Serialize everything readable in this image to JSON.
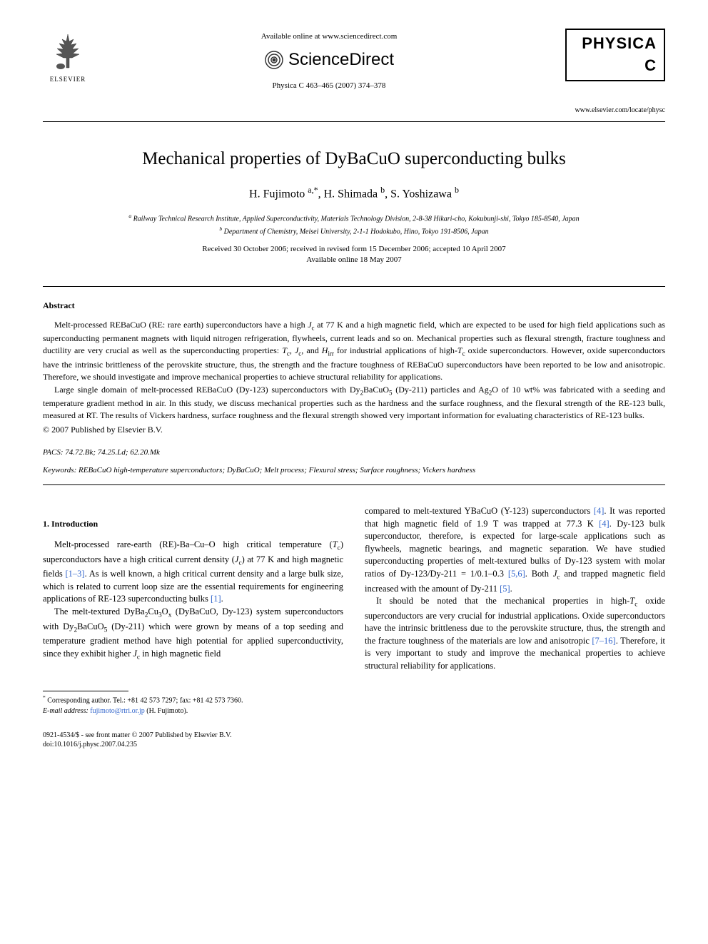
{
  "header": {
    "elsevier_label": "ELSEVIER",
    "available_online": "Available online at www.sciencedirect.com",
    "sciencedirect_label": "ScienceDirect",
    "journal_reference": "Physica C 463–465 (2007) 374–378",
    "journal_logo_text": "PHYSICA C",
    "journal_url": "www.elsevier.com/locate/physc"
  },
  "title": "Mechanical properties of DyBaCuO superconducting bulks",
  "authors_html": "H. Fujimoto <sup>a,*</sup>, H. Shimada <sup>b</sup>, S. Yoshizawa <sup>b</sup>",
  "affiliations": {
    "a": "Railway Technical Research Institute, Applied Superconductivity, Materials Technology Division, 2-8-38 Hikari-cho, Kokubunji-shi, Tokyo 185-8540, Japan",
    "b": "Department of Chemistry, Meisei University, 2-1-1 Hodokubo, Hino, Tokyo 191-8506, Japan"
  },
  "dates": {
    "line1": "Received 30 October 2006; received in revised form 15 December 2006; accepted 10 April 2007",
    "line2": "Available online 18 May 2007"
  },
  "abstract": {
    "heading": "Abstract",
    "p1_html": "Melt-processed REBaCuO (RE: rare earth) superconductors have a high <i>J</i><sub>c</sub> at 77 K and a high magnetic field, which are expected to be used for high field applications such as superconducting permanent magnets with liquid nitrogen refrigeration, flywheels, current leads and so on. Mechanical properties such as flexural strength, fracture toughness and ductility are very crucial as well as the superconducting properties: <i>T</i><sub>c</sub>, <i>J</i><sub>c</sub>, and <i>H</i><sub>irr</sub> for industrial applications of high-<i>T</i><sub>c</sub> oxide superconductors. However, oxide superconductors have the intrinsic brittleness of the perovskite structure, thus, the strength and the fracture toughness of REBaCuO superconductors have been reported to be low and anisotropic. Therefore, we should investigate and improve mechanical properties to achieve structural reliability for applications.",
    "p2_html": "Large single domain of melt-processed REBaCuO (Dy-123) superconductors with Dy<sub>2</sub>BaCuO<sub>5</sub> (Dy-211) particles and Ag<sub>2</sub>O of 10 wt% was fabricated with a seeding and temperature gradient method in air. In this study, we discuss mechanical properties such as the hardness and the surface roughness, and the flexural strength of the RE-123 bulk, measured at RT. The results of Vickers hardness, surface roughness and the flexural strength showed very important information for evaluating characteristics of RE-123 bulks.",
    "copyright": "© 2007 Published by Elsevier B.V."
  },
  "pacs": {
    "label": "PACS:",
    "value": "74.72.Bk; 74.25.Ld; 62.20.Mk"
  },
  "keywords": {
    "label": "Keywords:",
    "value": "REBaCuO high-temperature superconductors; DyBaCuO; Melt process; Flexural stress; Surface roughness; Vickers hardness"
  },
  "section1": {
    "heading": "1. Introduction",
    "left_p1_html": "Melt-processed rare-earth (RE)-Ba–Cu–O high critical temperature (<i>T</i><sub>c</sub>) superconductors have a high critical current density (<i>J</i><sub>c</sub>) at 77 K and high magnetic fields <a class=\"ref-link\">[1–3]</a>. As is well known, a high critical current density and a large bulk size, which is related to current loop size are the essential requirements for engineering applications of RE-123 superconducting bulks <a class=\"ref-link\">[1]</a>.",
    "left_p2_html": "The melt-textured DyBa<sub>2</sub>Cu<sub>3</sub>O<sub>x</sub> (DyBaCuO, Dy-123) system superconductors with Dy<sub>2</sub>BaCuO<sub>5</sub> (Dy-211) which were grown by means of a top seeding and temperature gradient method have high potential for applied superconductivity, since they exhibit higher <i>J</i><sub>c</sub> in high magnetic field",
    "right_p1_html": "compared to melt-textured YBaCuO (Y-123) superconductors <a class=\"ref-link\">[4]</a>. It was reported that high magnetic field of 1.9 T was trapped at 77.3 K <a class=\"ref-link\">[4]</a>. Dy-123 bulk superconductor, therefore, is expected for large-scale applications such as flywheels, magnetic bearings, and magnetic separation. We have studied superconducting properties of melt-textured bulks of Dy-123 system with molar ratios of Dy-123/Dy-211 = 1/0.1–0.3 <a class=\"ref-link\">[5,6]</a>. Both <i>J</i><sub>c</sub> and trapped magnetic field increased with the amount of Dy-211 <a class=\"ref-link\">[5]</a>.",
    "right_p2_html": "It should be noted that the mechanical properties in high-<i>T</i><sub>c</sub> oxide superconductors are very crucial for industrial applications. Oxide superconductors have the intrinsic brittleness due to the perovskite structure, thus, the strength and the fracture toughness of the materials are low and anisotropic <a class=\"ref-link\">[7–16]</a>. Therefore, it is very important to study and improve the mechanical properties to achieve structural reliability for applications."
  },
  "footnote": {
    "corresponding_html": "<sup>*</sup> Corresponding author. Tel.: +81 42 573 7297; fax: +81 42 573 7360.",
    "email_html": "<i>E-mail address:</i> <a class=\"ref-link\">fujimoto@rtri.or.jp</a> (H. Fujimoto)."
  },
  "footer": {
    "line1": "0921-4534/$ - see front matter © 2007 Published by Elsevier B.V.",
    "line2": "doi:10.1016/j.physc.2007.04.235"
  }
}
